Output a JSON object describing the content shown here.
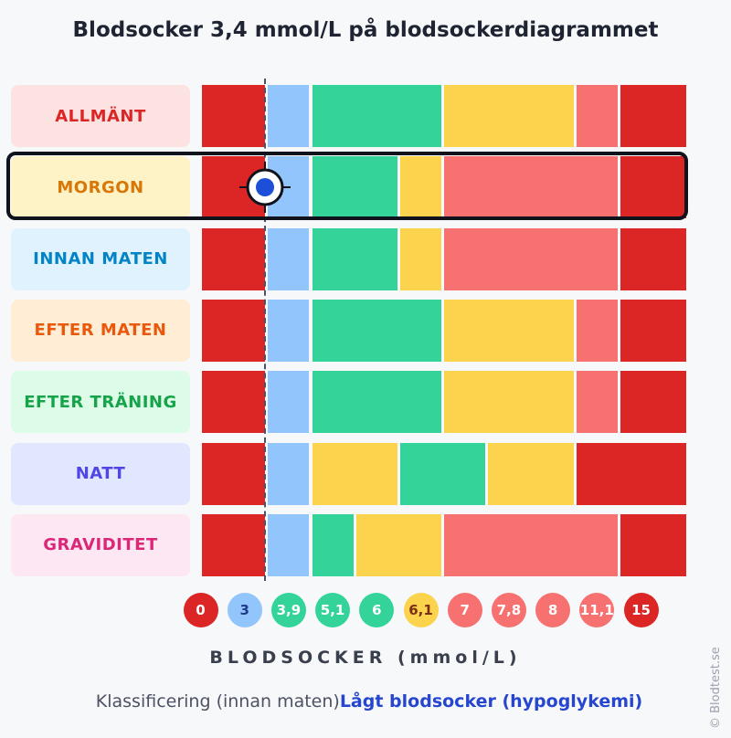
{
  "page": {
    "title": "Blodsocker 3,4 mmol/L på blodsockerdiagrammet",
    "axis_label": "BLODSOCKER (mmol/L)",
    "footer_prefix": "Klassificering (innan maten)",
    "footer_result": "Lågt blodsocker (hypoglykemi)",
    "copyright": "© Blodtest.se"
  },
  "colors": {
    "red": "#dc2626",
    "blue": "#93c5fd",
    "green": "#34d399",
    "yellow": "#fcd34d",
    "pink": "#f87171",
    "marker": "#1d4ed8"
  },
  "chart_data": {
    "type": "table",
    "title": "Blodsocker 3,4 mmol/L på blodsockerdiagrammet",
    "xlabel": "BLODSOCKER (mmol/L)",
    "ticks": [
      {
        "label": "0",
        "color": "red"
      },
      {
        "label": "3",
        "color": "blue"
      },
      {
        "label": "3,9",
        "color": "green"
      },
      {
        "label": "5,1",
        "color": "green"
      },
      {
        "label": "6",
        "color": "green"
      },
      {
        "label": "6,1",
        "color": "yellow"
      },
      {
        "label": "7",
        "color": "pink"
      },
      {
        "label": "7,8",
        "color": "pink"
      },
      {
        "label": "8",
        "color": "pink"
      },
      {
        "label": "11,1",
        "color": "pink"
      },
      {
        "label": "15",
        "color": "red"
      }
    ],
    "marker_value": 3.4,
    "highlighted_row": 1,
    "rows": [
      {
        "label": "ALLMÄNT",
        "label_color": "#dc2626",
        "bg": "#fde2e2",
        "bands": [
          "red",
          "blue",
          "green",
          "green",
          "green",
          "yellow",
          "yellow",
          "pink",
          "red"
        ]
      },
      {
        "label": "MORGON",
        "label_color": "#d97706",
        "bg": "#fef3c7",
        "bands": [
          "red",
          "blue",
          "green",
          "green",
          "yellow",
          "pink",
          "pink",
          "pink",
          "red"
        ]
      },
      {
        "label": "INNAN MATEN",
        "label_color": "#0284c7",
        "bg": "#e0f2fe",
        "bands": [
          "red",
          "blue",
          "green",
          "green",
          "yellow",
          "pink",
          "pink",
          "pink",
          "red"
        ]
      },
      {
        "label": "EFTER MATEN",
        "label_color": "#ea580c",
        "bg": "#ffedd5",
        "bands": [
          "red",
          "blue",
          "green",
          "green",
          "green",
          "yellow",
          "yellow",
          "pink",
          "red"
        ]
      },
      {
        "label": "EFTER TRÄNING",
        "label_color": "#16a34a",
        "bg": "#dcfce7",
        "bands": [
          "red",
          "blue",
          "green",
          "green",
          "green",
          "yellow",
          "yellow",
          "pink",
          "red"
        ]
      },
      {
        "label": "NATT",
        "label_color": "#4f46e5",
        "bg": "#e0e7ff",
        "bands": [
          "red",
          "blue",
          "yellow",
          "yellow",
          "green",
          "green",
          "yellow",
          "red",
          "red"
        ]
      },
      {
        "label": "GRAVIDITET",
        "label_color": "#db2777",
        "bg": "#fce7f3",
        "bands": [
          "red",
          "blue",
          "green",
          "yellow",
          "yellow",
          "pink",
          "pink",
          "pink",
          "red"
        ]
      }
    ]
  }
}
